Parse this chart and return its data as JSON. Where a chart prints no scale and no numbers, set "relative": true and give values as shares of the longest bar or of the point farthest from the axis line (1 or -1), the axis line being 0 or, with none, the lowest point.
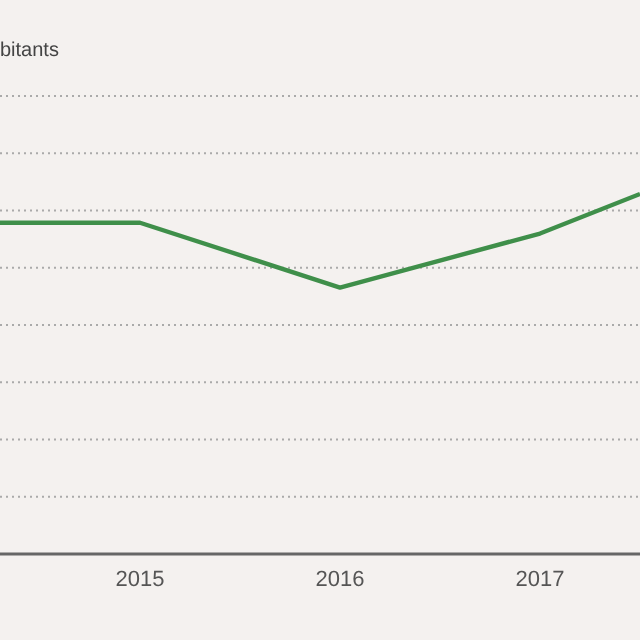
{
  "chart_data": {
    "type": "line",
    "annotations": [
      "bitants"
    ],
    "relative": true,
    "x": [
      2014.3,
      2015,
      2016,
      2017,
      2017.5
    ],
    "series": [
      {
        "color": "#3f8f4a",
        "values": [
          0.92,
          0.92,
          0.74,
          0.89,
          1
        ]
      }
    ],
    "xlim": [
      2014.3,
      2017.5
    ],
    "xticks": [
      2015,
      2016,
      2017
    ],
    "grid": "y",
    "marker": "none",
    "line_style": "solid"
  }
}
